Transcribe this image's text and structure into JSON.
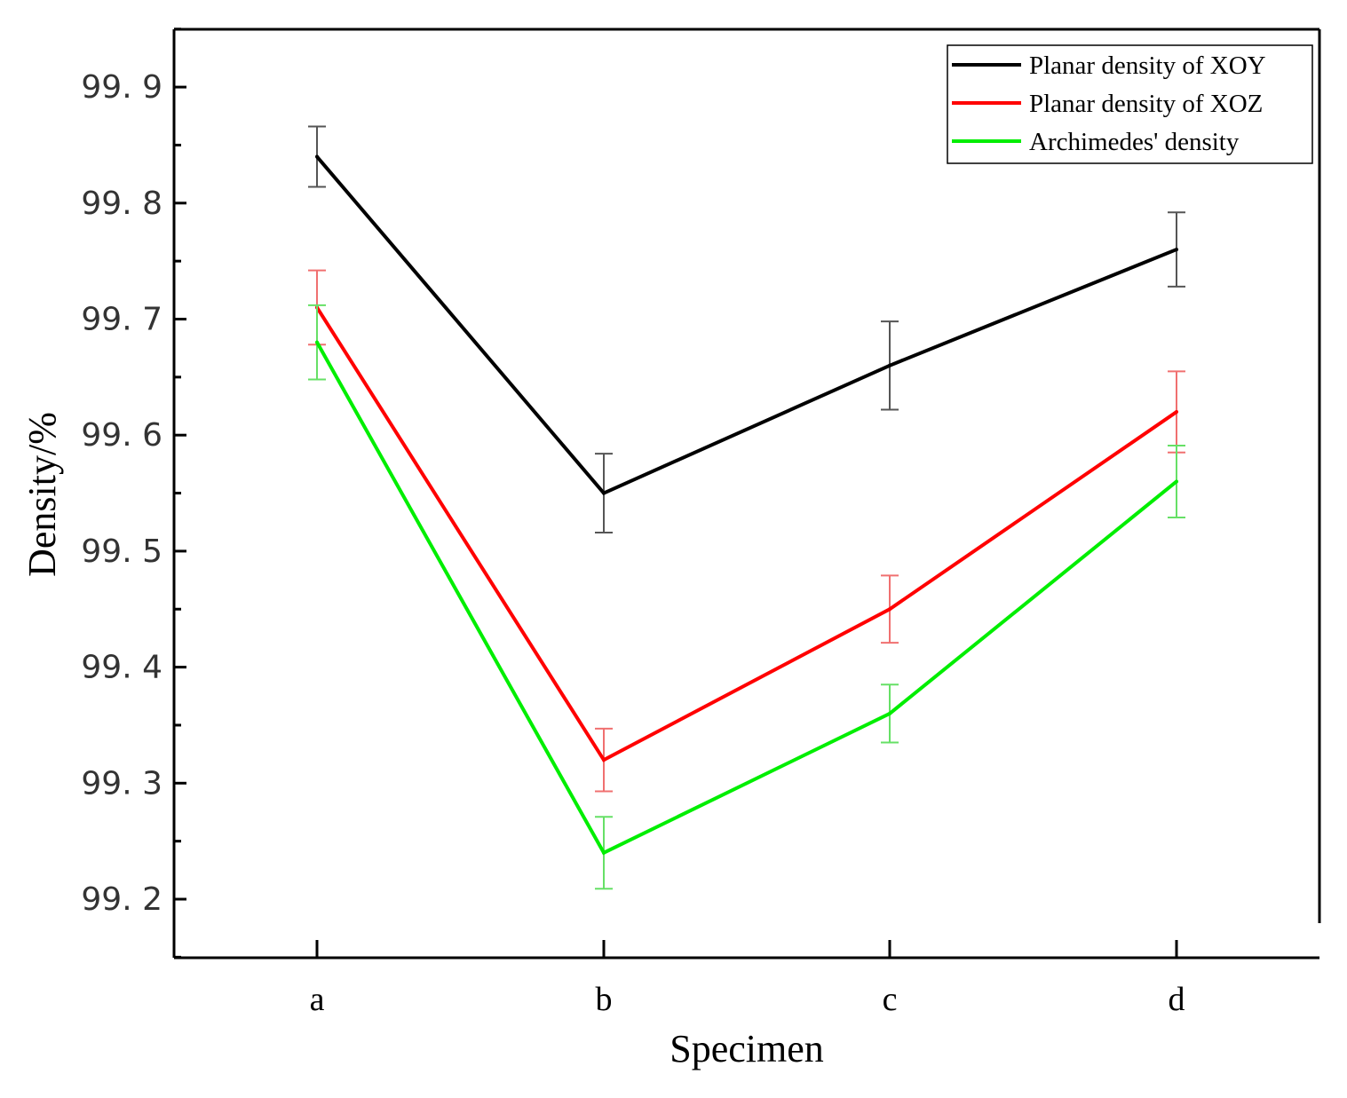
{
  "chart_data": {
    "type": "line",
    "title": "",
    "xlabel": "Specimen",
    "ylabel": "Density/%",
    "categories": [
      "a",
      "b",
      "c",
      "d"
    ],
    "ylim": [
      99.12,
      99.95
    ],
    "yticks": [
      99.2,
      99.3,
      99.4,
      99.5,
      99.6,
      99.7,
      99.8,
      99.9
    ],
    "ytick_labels": [
      "99. 2",
      "99. 3",
      "99. 4",
      "99. 5",
      "99. 6",
      "99. 7",
      "99. 8",
      "99. 9"
    ],
    "grid": false,
    "legend_position": "top-right",
    "series": [
      {
        "name": "Planar density of XOY",
        "color": "#000000",
        "error_color": "#555555",
        "values": [
          99.84,
          99.55,
          99.66,
          99.76
        ],
        "errors": [
          0.026,
          0.034,
          0.038,
          0.032
        ]
      },
      {
        "name": "Planar density of XOZ",
        "color": "#ff0000",
        "error_color": "#f07070",
        "values": [
          99.71,
          99.32,
          99.45,
          99.62
        ],
        "errors": [
          0.032,
          0.027,
          0.029,
          0.035
        ]
      },
      {
        "name": "Archimedes' density",
        "color": "#00ee00",
        "error_color": "#66e066",
        "values": [
          99.68,
          99.24,
          99.36,
          99.56
        ],
        "errors": [
          0.032,
          0.031,
          0.025,
          0.031
        ]
      }
    ]
  }
}
